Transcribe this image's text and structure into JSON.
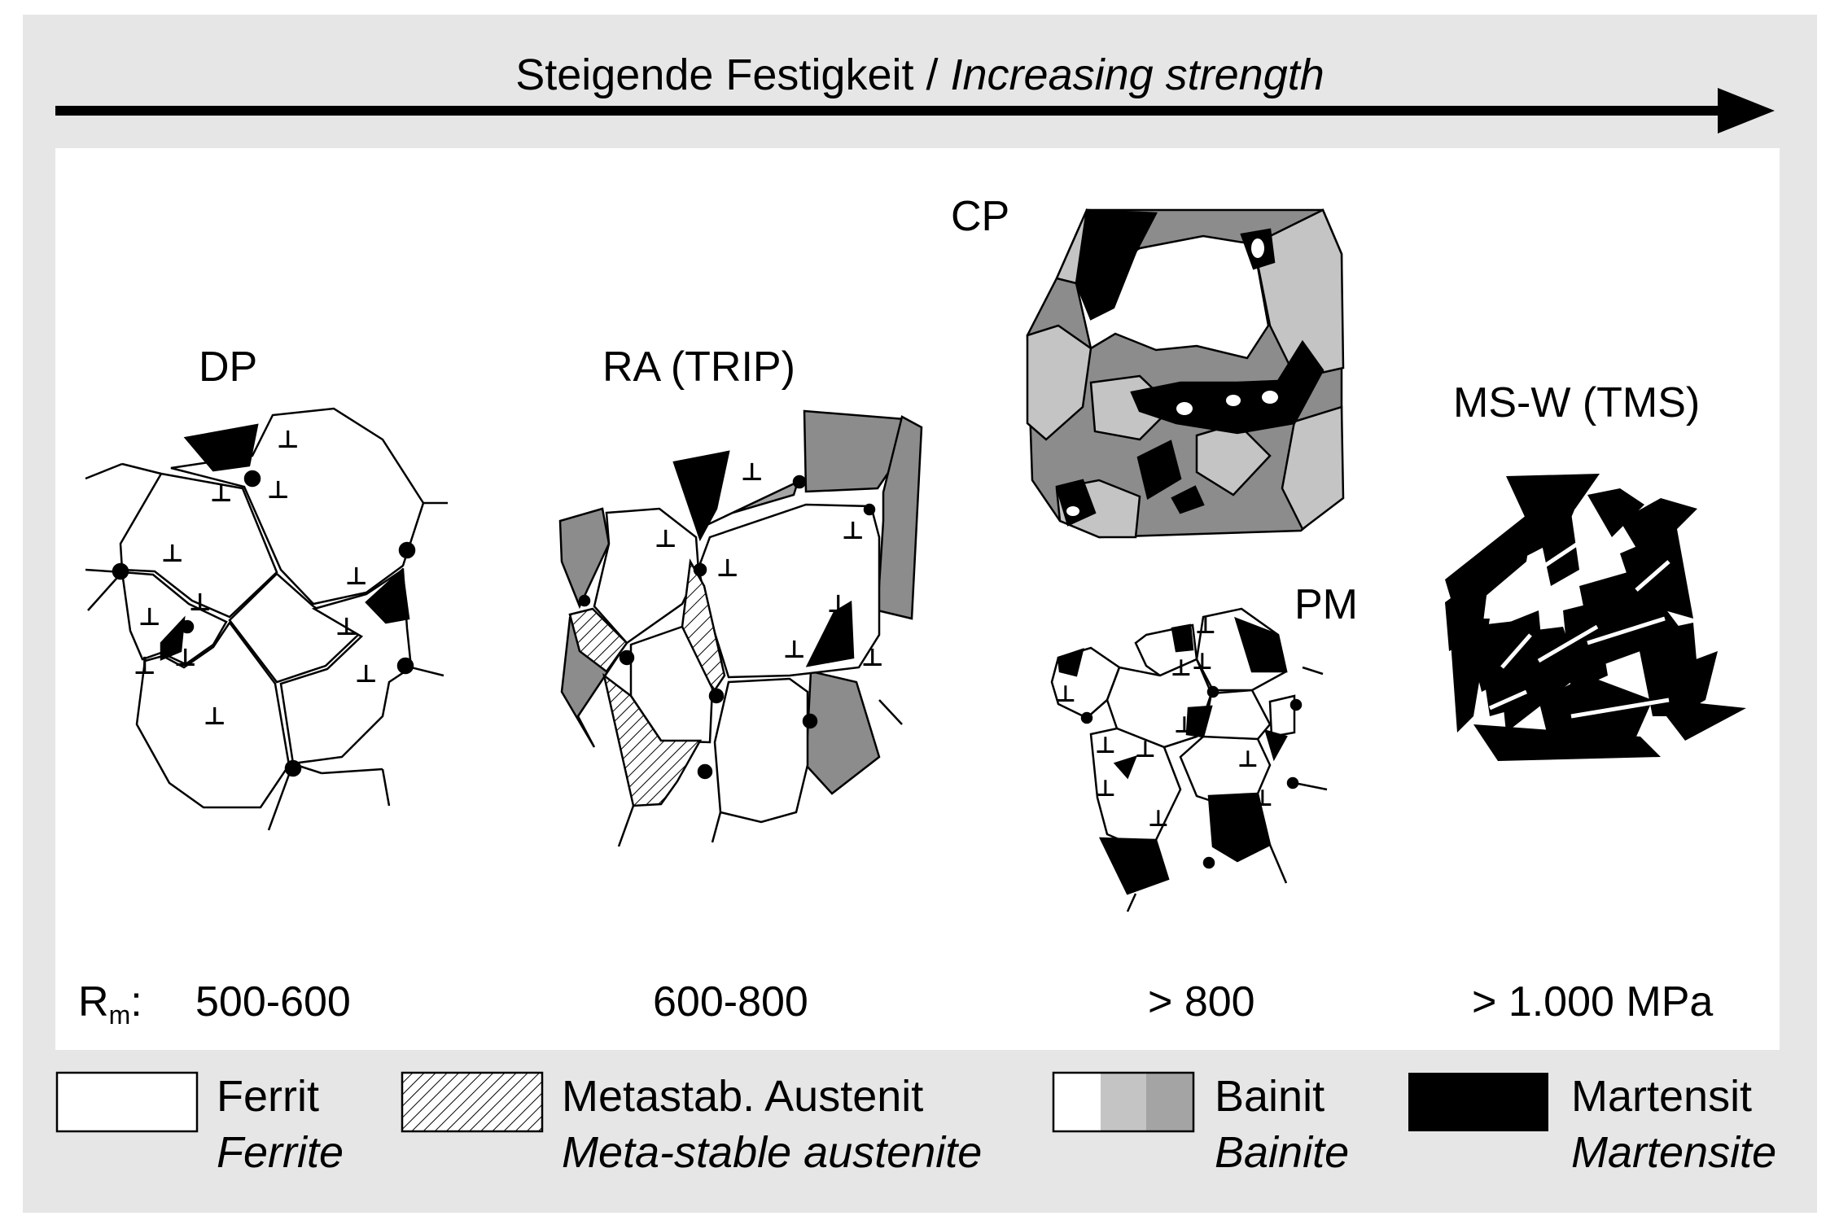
{
  "header": {
    "title_de": "Steigende Festigkeit / ",
    "title_en": "Increasing strength"
  },
  "microstructures": [
    {
      "label": "DP",
      "rm": "500-600"
    },
    {
      "label": "RA (TRIP)",
      "rm": "600-800"
    },
    {
      "label": "CP",
      "rm": "> 800"
    },
    {
      "label": "PM",
      "rm": ""
    },
    {
      "label": "MS-W (TMS)",
      "rm": "> 1.000 MPa"
    }
  ],
  "rm_label": {
    "main": "R",
    "sub": "m",
    "colon": ":"
  },
  "legend": [
    {
      "de": "Ferrit",
      "en": "Ferrite"
    },
    {
      "de": "Metastab. Austenit",
      "en": "Meta-stable austenite"
    },
    {
      "de": "Bainit",
      "en": "Bainite"
    },
    {
      "de": "Martensit",
      "en": "Martensite"
    }
  ],
  "colors": {
    "background": "#e6e6e6",
    "panel": "#ffffff",
    "ferrite": "#ffffff",
    "bainite_light": "#c4c4c4",
    "bainite_mid": "#a4a4a4",
    "bainite_dark": "#8c8c8c",
    "martensite": "#000000"
  }
}
